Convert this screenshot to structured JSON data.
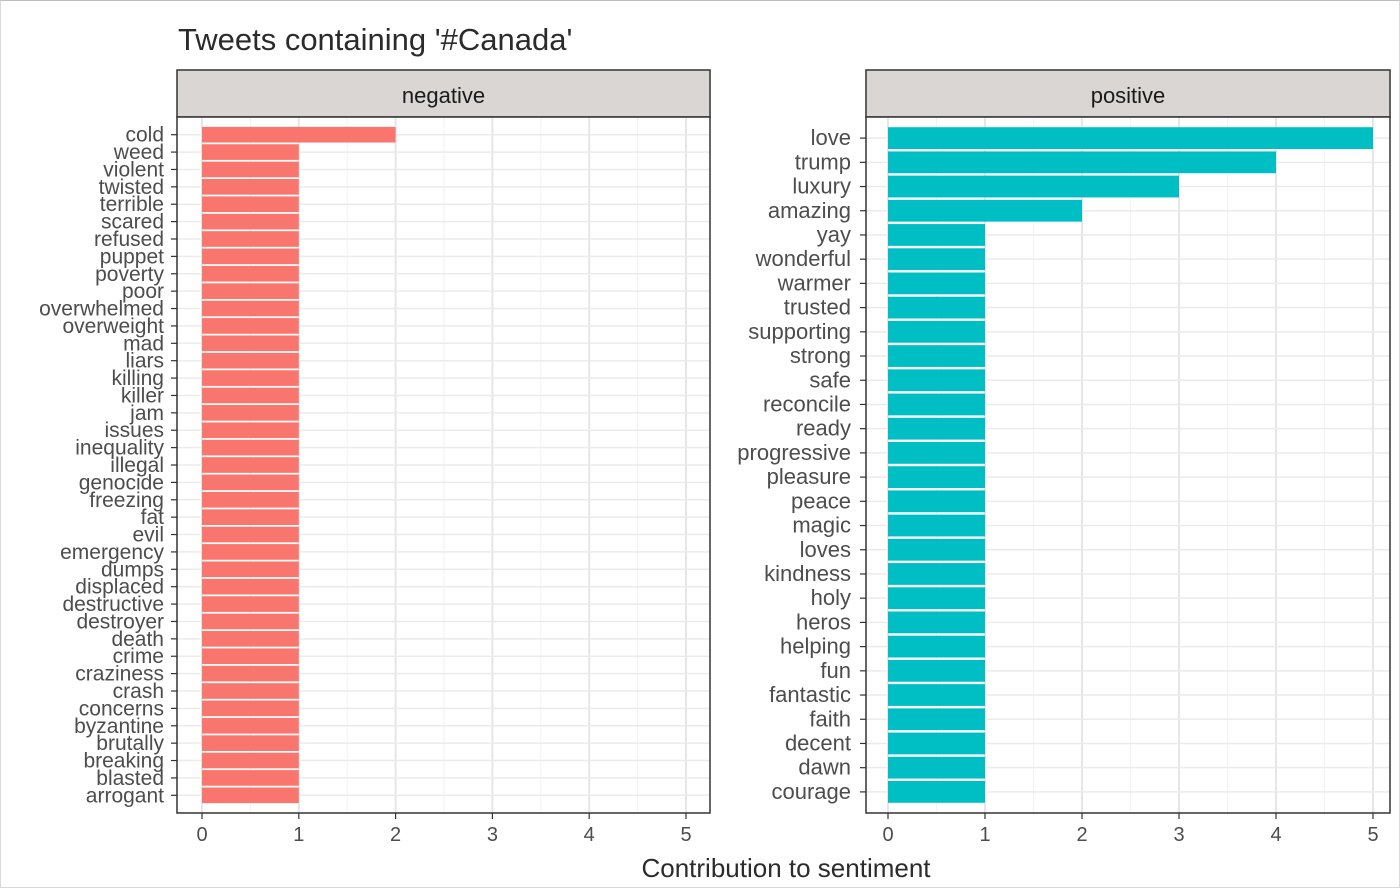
{
  "chart_data": {
    "type": "bar",
    "orientation": "horizontal",
    "title": "Tweets containing '#Canada'",
    "xlabel": "Contribution to sentiment",
    "ylabel": "",
    "xlim": [
      0,
      5
    ],
    "x_ticks": [
      "0",
      "1",
      "2",
      "3",
      "4",
      "5"
    ],
    "grid": true,
    "legend": "none",
    "facets": [
      {
        "name": "negative",
        "color": "#F8766D",
        "categories": [
          "cold",
          "weed",
          "violent",
          "twisted",
          "terrible",
          "scared",
          "refused",
          "puppet",
          "poverty",
          "poor",
          "overwhelmed",
          "overweight",
          "mad",
          "liars",
          "killing",
          "killer",
          "jam",
          "issues",
          "inequality",
          "illegal",
          "genocide",
          "freezing",
          "fat",
          "evil",
          "emergency",
          "dumps",
          "displaced",
          "destructive",
          "destroyer",
          "death",
          "crime",
          "craziness",
          "crash",
          "concerns",
          "byzantine",
          "brutally",
          "breaking",
          "blasted",
          "arrogant"
        ],
        "values": [
          2,
          1,
          1,
          1,
          1,
          1,
          1,
          1,
          1,
          1,
          1,
          1,
          1,
          1,
          1,
          1,
          1,
          1,
          1,
          1,
          1,
          1,
          1,
          1,
          1,
          1,
          1,
          1,
          1,
          1,
          1,
          1,
          1,
          1,
          1,
          1,
          1,
          1,
          1
        ]
      },
      {
        "name": "positive",
        "color": "#00BFC4",
        "categories": [
          "love",
          "trump",
          "luxury",
          "amazing",
          "yay",
          "wonderful",
          "warmer",
          "trusted",
          "supporting",
          "strong",
          "safe",
          "reconcile",
          "ready",
          "progressive",
          "pleasure",
          "peace",
          "magic",
          "loves",
          "kindness",
          "holy",
          "heros",
          "helping",
          "fun",
          "fantastic",
          "faith",
          "decent",
          "dawn",
          "courage"
        ],
        "values": [
          5,
          4,
          3,
          2,
          1,
          1,
          1,
          1,
          1,
          1,
          1,
          1,
          1,
          1,
          1,
          1,
          1,
          1,
          1,
          1,
          1,
          1,
          1,
          1,
          1,
          1,
          1,
          1
        ]
      }
    ]
  }
}
